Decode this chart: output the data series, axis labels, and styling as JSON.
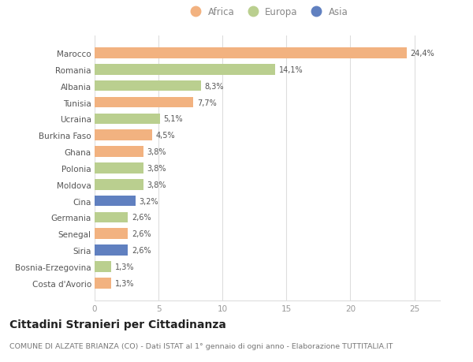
{
  "categories": [
    "Costa d'Avorio",
    "Bosnia-Erzegovina",
    "Siria",
    "Senegal",
    "Germania",
    "Cina",
    "Moldova",
    "Polonia",
    "Ghana",
    "Burkina Faso",
    "Ucraina",
    "Tunisia",
    "Albania",
    "Romania",
    "Marocco"
  ],
  "values": [
    1.3,
    1.3,
    2.6,
    2.6,
    2.6,
    3.2,
    3.8,
    3.8,
    3.8,
    4.5,
    5.1,
    7.7,
    8.3,
    14.1,
    24.4
  ],
  "continents": [
    "Africa",
    "Europa",
    "Asia",
    "Africa",
    "Europa",
    "Asia",
    "Europa",
    "Europa",
    "Africa",
    "Africa",
    "Europa",
    "Africa",
    "Europa",
    "Europa",
    "Africa"
  ],
  "colors": {
    "Africa": "#F2B280",
    "Europa": "#BACF8F",
    "Asia": "#6080C0"
  },
  "labels": [
    "1,3%",
    "1,3%",
    "2,6%",
    "2,6%",
    "2,6%",
    "3,2%",
    "3,8%",
    "3,8%",
    "3,8%",
    "4,5%",
    "5,1%",
    "7,7%",
    "8,3%",
    "14,1%",
    "24,4%"
  ],
  "title": "Cittadini Stranieri per Cittadinanza",
  "subtitle": "COMUNE DI ALZATE BRIANZA (CO) - Dati ISTAT al 1° gennaio di ogni anno - Elaborazione TUTTITALIA.IT",
  "xlim": [
    0,
    27
  ],
  "xticks": [
    0,
    5,
    10,
    15,
    20,
    25
  ],
  "legend_labels": [
    "Africa",
    "Europa",
    "Asia"
  ],
  "legend_colors": [
    "#F2B280",
    "#BACF8F",
    "#6080C0"
  ],
  "bar_height": 0.65,
  "background_color": "#ffffff",
  "grid_color": "#dddddd",
  "title_fontsize": 10,
  "subtitle_fontsize": 6.8,
  "label_fontsize": 7,
  "tick_fontsize": 7.5,
  "legend_fontsize": 8.5,
  "ytick_fontsize": 7.5
}
